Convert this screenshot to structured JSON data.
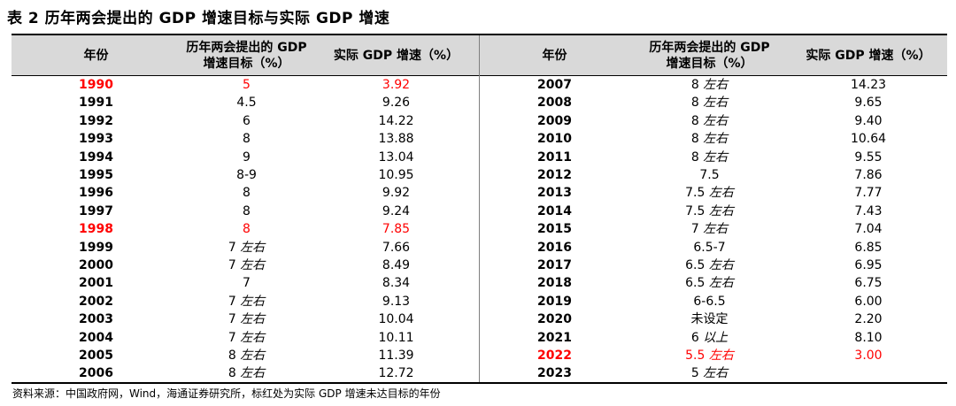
{
  "title": "表 2  历年两会提出的 GDP 增速目标与实际 GDP 增速",
  "headers": {
    "year": "年份",
    "target_line1": "历年两会提出的 GDP",
    "target_line2": "增速目标（%）",
    "actual": "实际 GDP 增速（%）"
  },
  "left_rows": [
    {
      "year": "1990",
      "target": "5",
      "target_suffix": "",
      "actual": "3.92",
      "highlight": true
    },
    {
      "year": "1991",
      "target": "4.5",
      "target_suffix": "",
      "actual": "9.26",
      "highlight": false
    },
    {
      "year": "1992",
      "target": "6",
      "target_suffix": "",
      "actual": "14.22",
      "highlight": false
    },
    {
      "year": "1993",
      "target": "8",
      "target_suffix": "",
      "actual": "13.88",
      "highlight": false
    },
    {
      "year": "1994",
      "target": "9",
      "target_suffix": "",
      "actual": "13.04",
      "highlight": false
    },
    {
      "year": "1995",
      "target": "8-9",
      "target_suffix": "",
      "actual": "10.95",
      "highlight": false
    },
    {
      "year": "1996",
      "target": "8",
      "target_suffix": "",
      "actual": "9.92",
      "highlight": false
    },
    {
      "year": "1997",
      "target": "8",
      "target_suffix": "",
      "actual": "9.24",
      "highlight": false
    },
    {
      "year": "1998",
      "target": "8",
      "target_suffix": "",
      "actual": "7.85",
      "highlight": true
    },
    {
      "year": "1999",
      "target": "7",
      "target_suffix": "左右",
      "actual": "7.66",
      "highlight": false
    },
    {
      "year": "2000",
      "target": "7",
      "target_suffix": "左右",
      "actual": "8.49",
      "highlight": false
    },
    {
      "year": "2001",
      "target": "7",
      "target_suffix": "",
      "actual": "8.34",
      "highlight": false
    },
    {
      "year": "2002",
      "target": "7",
      "target_suffix": "左右",
      "actual": "9.13",
      "highlight": false
    },
    {
      "year": "2003",
      "target": "7",
      "target_suffix": "左右",
      "actual": "10.04",
      "highlight": false
    },
    {
      "year": "2004",
      "target": "7",
      "target_suffix": "左右",
      "actual": "10.11",
      "highlight": false
    },
    {
      "year": "2005",
      "target": "8",
      "target_suffix": "左右",
      "actual": "11.39",
      "highlight": false
    },
    {
      "year": "2006",
      "target": "8",
      "target_suffix": "左右",
      "actual": "12.72",
      "highlight": false
    }
  ],
  "right_rows": [
    {
      "year": "2007",
      "target": "8",
      "target_suffix": "左右",
      "actual": "14.23",
      "highlight": false
    },
    {
      "year": "2008",
      "target": "8",
      "target_suffix": "左右",
      "actual": "9.65",
      "highlight": false
    },
    {
      "year": "2009",
      "target": "8",
      "target_suffix": "左右",
      "actual": "9.40",
      "highlight": false
    },
    {
      "year": "2010",
      "target": "8",
      "target_suffix": "左右",
      "actual": "10.64",
      "highlight": false
    },
    {
      "year": "2011",
      "target": "8",
      "target_suffix": "左右",
      "actual": "9.55",
      "highlight": false
    },
    {
      "year": "2012",
      "target": "7.5",
      "target_suffix": "",
      "actual": "7.86",
      "highlight": false
    },
    {
      "year": "2013",
      "target": "7.5",
      "target_suffix": "左右",
      "actual": "7.77",
      "highlight": false
    },
    {
      "year": "2014",
      "target": "7.5",
      "target_suffix": "左右",
      "actual": "7.43",
      "highlight": false
    },
    {
      "year": "2015",
      "target": "7",
      "target_suffix": "左右",
      "actual": "7.04",
      "highlight": false
    },
    {
      "year": "2016",
      "target": "6.5-7",
      "target_suffix": "",
      "actual": "6.85",
      "highlight": false
    },
    {
      "year": "2017",
      "target": "6.5",
      "target_suffix": "左右",
      "actual": "6.95",
      "highlight": false
    },
    {
      "year": "2018",
      "target": "6.5",
      "target_suffix": "左右",
      "actual": "6.75",
      "highlight": false
    },
    {
      "year": "2019",
      "target": "6-6.5",
      "target_suffix": "",
      "actual": "6.00",
      "highlight": false
    },
    {
      "year": "2020",
      "target": "未设定",
      "target_suffix": "",
      "actual": "2.20",
      "highlight": false
    },
    {
      "year": "2021",
      "target": "6",
      "target_suffix": "以上",
      "actual": "8.10",
      "highlight": false
    },
    {
      "year": "2022",
      "target": "5.5",
      "target_suffix": "左右",
      "actual": "3.00",
      "highlight": true
    },
    {
      "year": "2023",
      "target": "5",
      "target_suffix": "左右",
      "actual": "",
      "highlight": false
    }
  ],
  "source": "资料来源：中国政府网，Wind，海通证券研究所，标红处为实际 GDP 增速未达目标的年份",
  "colors": {
    "header_bg": "#d9d9d9",
    "highlight": "#ff0000",
    "text": "#000000"
  }
}
